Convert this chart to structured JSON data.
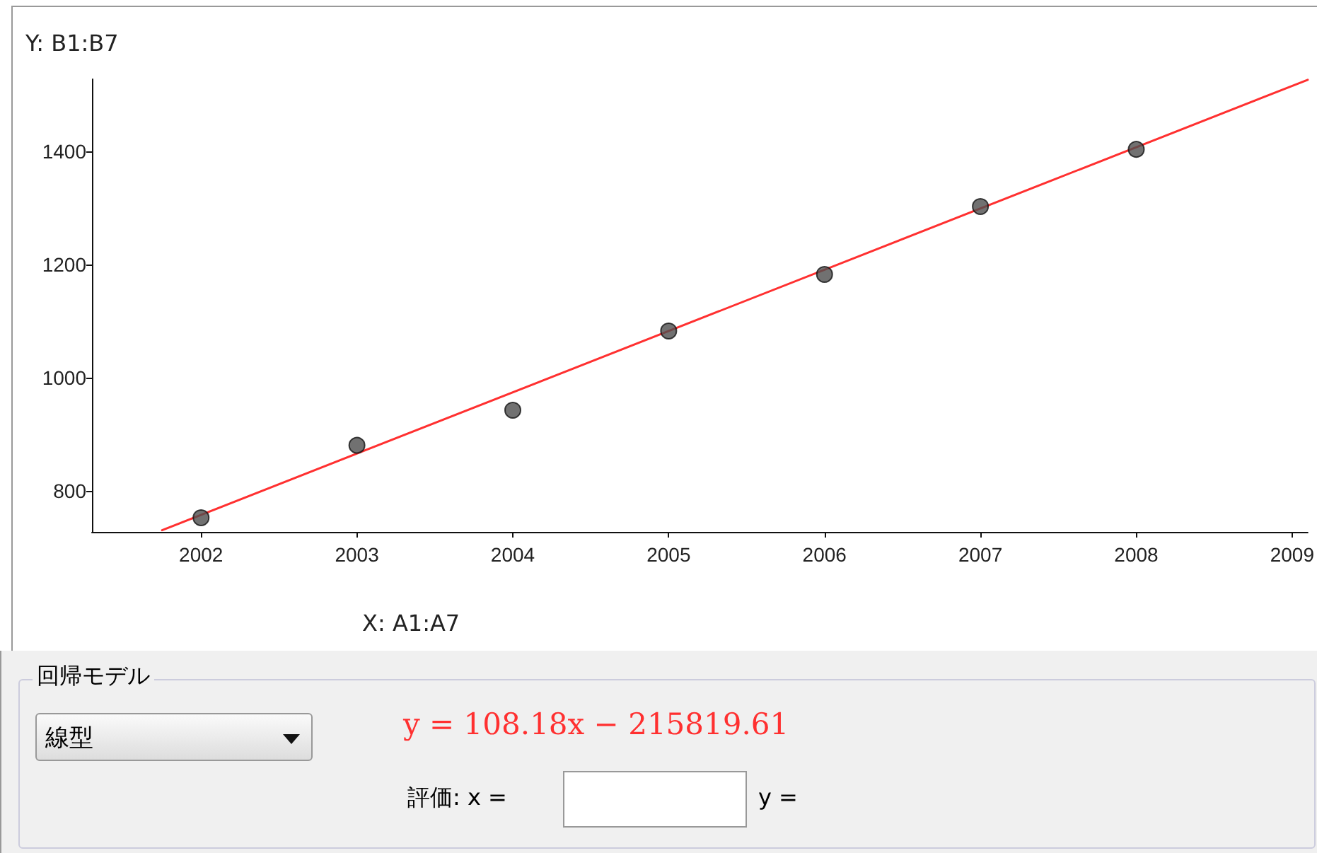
{
  "chart_data": {
    "type": "scatter",
    "xlabel": "X:  A1:A7",
    "ylabel": "Y:  B1:B7",
    "x": [
      2002,
      2003,
      2004,
      2005,
      2006,
      2007,
      2008
    ],
    "xlim": [
      2001.3,
      2009.1
    ],
    "xticks": [
      2002,
      2003,
      2004,
      2005,
      2006,
      2007,
      2008,
      2009
    ],
    "ylim": [
      727,
      1527
    ],
    "yticks": [
      800,
      1000,
      1200,
      1400
    ],
    "series": [
      {
        "color": "#4d4d4d",
        "values": [
          752,
          880,
          942,
          1082,
          1182,
          1302,
          1403
        ]
      },
      {
        "type": "line",
        "color": "#ff3030",
        "marker": "none",
        "x": [
          2001.75,
          2009.1
        ],
        "values": [
          730,
          1526
        ]
      }
    ],
    "marker": "circle",
    "grid": false,
    "annotations": [
      "回帰モデル",
      "線型",
      "y = 108.18x − 215819.61",
      "評価:  x =",
      "y ="
    ]
  }
}
